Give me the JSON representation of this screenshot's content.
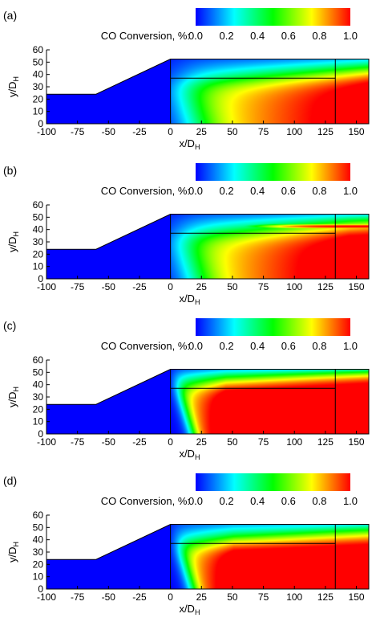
{
  "chart_data": [
    {
      "type": "heatmap",
      "panel_label": "(a)",
      "colorbar": {
        "label": "CO Conversion, %:",
        "ticks": [
          "0.0",
          "0.2",
          "0.4",
          "0.6",
          "0.8",
          "1.0"
        ],
        "range": [
          0.0,
          1.0
        ],
        "colormap": [
          "#0000ff",
          "#00ffff",
          "#00ff00",
          "#ffff00",
          "#ff0000"
        ]
      },
      "xlabel": "x/D",
      "xlabel_sub": "H",
      "ylabel": "y/D",
      "ylabel_sub": "H",
      "xticks": [
        -100,
        -75,
        -50,
        -25,
        0,
        25,
        50,
        75,
        100,
        125,
        150
      ],
      "yticks": [
        0,
        10,
        20,
        30,
        40,
        50,
        60
      ],
      "xlim": [
        -100,
        160
      ],
      "ylim": [
        0,
        60
      ],
      "geometry": {
        "inlet_top": 24,
        "taper_start_x": -60,
        "channel_top": 52.5,
        "divider_y": 37,
        "vertical_lines_x": [
          0,
          133
        ]
      },
      "field": {
        "onset_x_top": 2,
        "onset_x_bottom": 20,
        "front_width": 50,
        "lobe_center_y": 4,
        "lobe_height": 40,
        "top_wall_suppression": 5,
        "upper_band": 0.0
      }
    },
    {
      "type": "heatmap",
      "panel_label": "(b)",
      "colorbar": {
        "label": "CO Conversion, %:",
        "ticks": [
          "0.0",
          "0.2",
          "0.4",
          "0.6",
          "0.8",
          "1.0"
        ],
        "range": [
          0.0,
          1.0
        ],
        "colormap": [
          "#0000ff",
          "#00ffff",
          "#00ff00",
          "#ffff00",
          "#ff0000"
        ]
      },
      "xlabel": "x/D",
      "xlabel_sub": "H",
      "ylabel": "y/D",
      "ylabel_sub": "H",
      "xticks": [
        -100,
        -75,
        -50,
        -25,
        0,
        25,
        50,
        75,
        100,
        125,
        150
      ],
      "yticks": [
        0,
        10,
        20,
        30,
        40,
        50,
        60
      ],
      "xlim": [
        -100,
        160
      ],
      "ylim": [
        0,
        60
      ],
      "geometry": {
        "inlet_top": 24,
        "taper_start_x": -60,
        "channel_top": 52.5,
        "divider_y": 37,
        "vertical_lines_x": [
          0,
          133
        ]
      },
      "field": {
        "onset_x_top": 2,
        "onset_x_bottom": 20,
        "front_width": 45,
        "lobe_center_y": 4,
        "lobe_height": 42,
        "top_wall_suppression": 4,
        "upper_band": 0.9
      }
    },
    {
      "type": "heatmap",
      "panel_label": "(c)",
      "colorbar": {
        "label": "CO Conversion, %:",
        "ticks": [
          "0.0",
          "0.2",
          "0.4",
          "0.6",
          "0.8",
          "1.0"
        ],
        "range": [
          0.0,
          1.0
        ],
        "colormap": [
          "#0000ff",
          "#00ffff",
          "#00ff00",
          "#ffff00",
          "#ff0000"
        ]
      },
      "xlabel": "x/D",
      "xlabel_sub": "H",
      "ylabel": "y/D",
      "ylabel_sub": "H",
      "xticks": [
        -100,
        -75,
        -50,
        -25,
        0,
        25,
        50,
        75,
        100,
        125,
        150
      ],
      "yticks": [
        0,
        10,
        20,
        30,
        40,
        50,
        60
      ],
      "xlim": [
        -100,
        160
      ],
      "ylim": [
        0,
        60
      ],
      "geometry": {
        "inlet_top": 24,
        "taper_start_x": -60,
        "channel_top": 52.5,
        "divider_y": 37,
        "vertical_lines_x": [
          0,
          133
        ]
      },
      "field": {
        "onset_x_top": 1,
        "onset_x_bottom": 18,
        "front_width": 14,
        "lobe_center_y": 6,
        "lobe_height": 46,
        "top_wall_suppression": 3,
        "upper_band": 0.0
      }
    },
    {
      "type": "heatmap",
      "panel_label": "(d)",
      "colorbar": {
        "label": "CO Conversion, %:",
        "ticks": [
          "0.0",
          "0.2",
          "0.4",
          "0.6",
          "0.8",
          "1.0"
        ],
        "range": [
          0.0,
          1.0
        ],
        "colormap": [
          "#0000ff",
          "#00ffff",
          "#00ff00",
          "#ffff00",
          "#ff0000"
        ]
      },
      "xlabel": "x/D",
      "xlabel_sub": "H",
      "ylabel": "y/D",
      "ylabel_sub": "H",
      "xticks": [
        -100,
        -75,
        -50,
        -25,
        0,
        25,
        50,
        75,
        100,
        125,
        150
      ],
      "yticks": [
        0,
        10,
        20,
        30,
        40,
        50,
        60
      ],
      "xlim": [
        -100,
        160
      ],
      "ylim": [
        0,
        60
      ],
      "geometry": {
        "inlet_top": 24,
        "taper_start_x": -60,
        "channel_top": 52.5,
        "divider_y": 37,
        "vertical_lines_x": [
          0,
          133
        ]
      },
      "field": {
        "onset_x_top": 1,
        "onset_x_bottom": 18,
        "front_width": 16,
        "lobe_center_y": 4,
        "lobe_height": 44,
        "top_wall_suppression": 5,
        "upper_band": 0.0
      }
    }
  ]
}
